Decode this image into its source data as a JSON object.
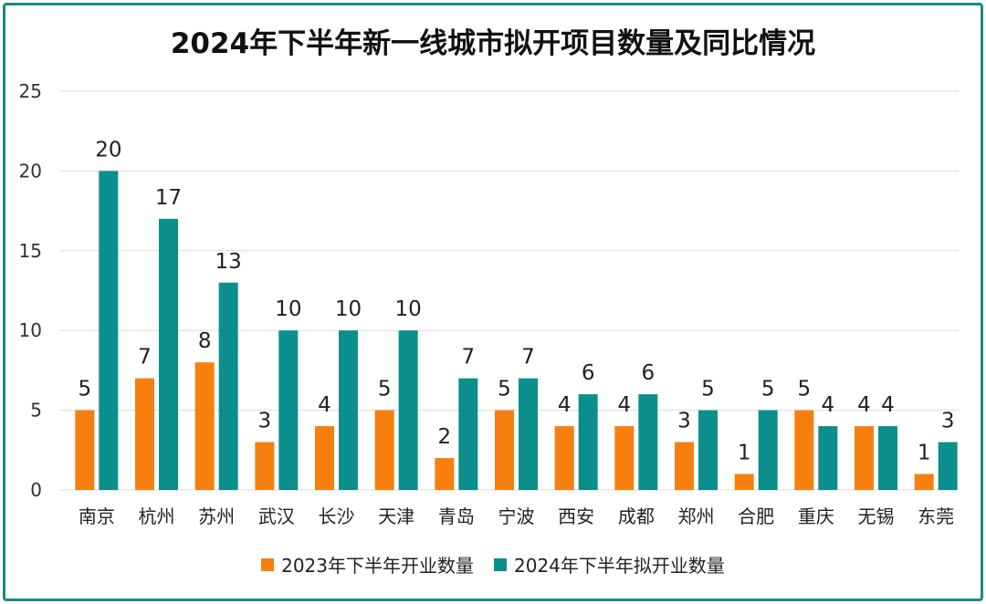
{
  "colors": {
    "series1": "#f77f0e",
    "series2": "#0b8f8c",
    "grid": "#dddddd",
    "border": "#1a8a8a"
  },
  "chart_data": {
    "type": "bar",
    "title": "2024年下半年新一线城市拟开项目数量及同比情况",
    "categories": [
      "南京",
      "杭州",
      "苏州",
      "武汉",
      "长沙",
      "天津",
      "青岛",
      "宁波",
      "西安",
      "成都",
      "郑州",
      "合肥",
      "重庆",
      "无锡",
      "东莞"
    ],
    "series": [
      {
        "name": "2023年下半年开业数量",
        "values": [
          5,
          7,
          8,
          3,
          4,
          5,
          2,
          5,
          4,
          4,
          3,
          1,
          5,
          4,
          1
        ]
      },
      {
        "name": "2024年下半年拟开业数量",
        "values": [
          20,
          17,
          13,
          10,
          10,
          10,
          7,
          7,
          6,
          6,
          5,
          5,
          4,
          4,
          3
        ]
      }
    ],
    "ylim": [
      0,
      25
    ],
    "yticks": [
      0,
      5,
      10,
      15,
      20,
      25
    ],
    "grid": true,
    "legend": "bottom"
  }
}
